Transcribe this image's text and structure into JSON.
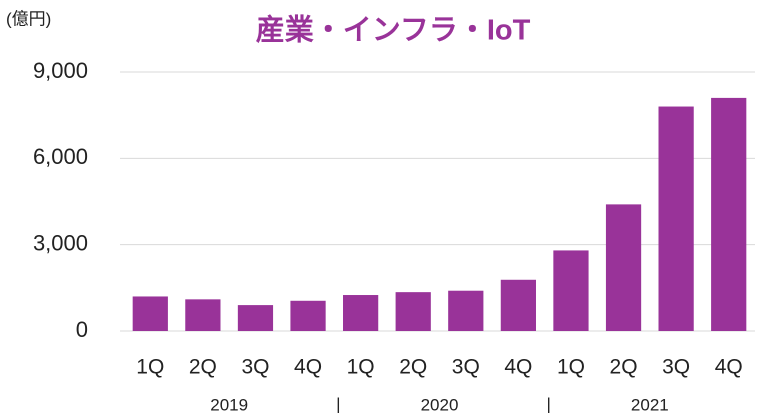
{
  "chart_data": {
    "type": "bar",
    "title": "産業・インフラ・IoT",
    "unit_label": "(億円)",
    "categories": [
      "1Q",
      "2Q",
      "3Q",
      "4Q",
      "1Q",
      "2Q",
      "3Q",
      "4Q",
      "1Q",
      "2Q",
      "3Q",
      "4Q"
    ],
    "values": [
      1200,
      1100,
      900,
      1050,
      1250,
      1350,
      1400,
      1780,
      2800,
      4400,
      7800,
      8100
    ],
    "color": "#993399",
    "groups": [
      "2019",
      "2020",
      "2021"
    ],
    "group_separator": "|",
    "ylim": [
      0,
      9000
    ],
    "yticks": [
      0,
      {
        "value": 3000,
        "label": "3,000"
      },
      {
        "value": 6000,
        "label": "6,000"
      },
      {
        "value": 9000,
        "label": "9,000"
      }
    ],
    "grid": true
  }
}
